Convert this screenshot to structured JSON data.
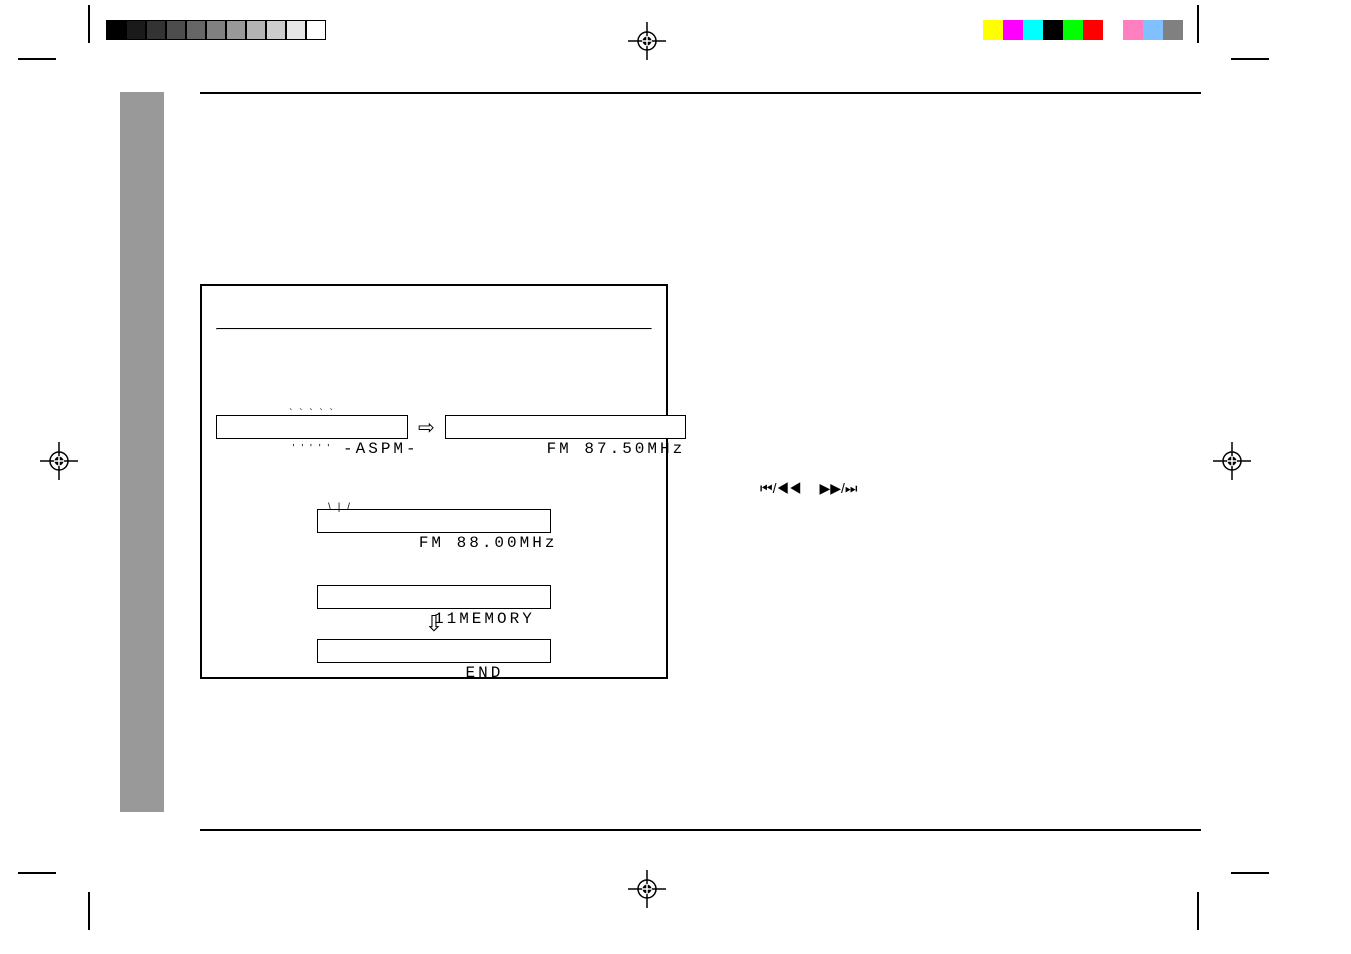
{
  "gray_colors": [
    "#000000",
    "#1a1a1a",
    "#333333",
    "#4d4d4d",
    "#666666",
    "#808080",
    "#999999",
    "#b3b3b3",
    "#cccccc",
    "#e6e6e6",
    "#ffffff"
  ],
  "color_colors": [
    "#ffff00",
    "#ff00ff",
    "#00ffff",
    "#000000",
    "#00ff00",
    "#ff0000",
    "#ffffff",
    "#ff80c0",
    "#80c0ff",
    "#808080"
  ],
  "gray_strip_color": "#999999",
  "diagram": {
    "aspm": "-ASPM-",
    "freq1": "FM 87.50MHz",
    "freq2": "FM 88.00MHz",
    "memory": "11MEMORY",
    "end": "END"
  },
  "buttons": {
    "prev": "⏮/◀◀",
    "next": "▶▶/⏭"
  }
}
